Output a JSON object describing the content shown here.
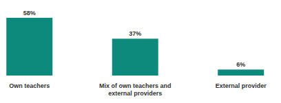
{
  "chart_data": {
    "type": "bar",
    "categories": [
      "Own teachers",
      "Mix of own teachers and external providers",
      "External provider"
    ],
    "values": [
      58,
      37,
      6
    ],
    "value_labels": [
      "58%",
      "37%",
      "6%"
    ],
    "color": "#0e8a7c",
    "ylim": [
      0,
      60
    ],
    "data_labels": true,
    "tick_labels": "x"
  }
}
